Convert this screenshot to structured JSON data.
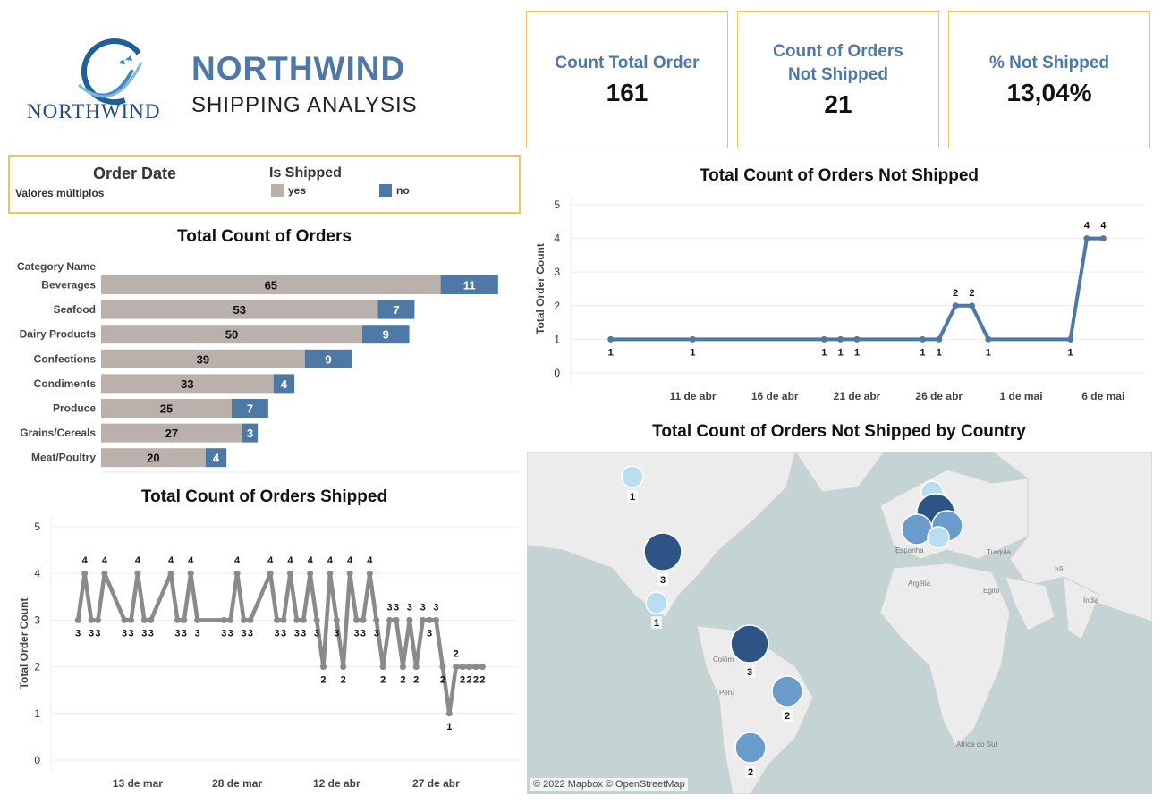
{
  "header": {
    "logo_text": "NORTHWIND",
    "title": "NORTHWIND",
    "subtitle": "SHIPPING ANALYSIS"
  },
  "kpis": [
    {
      "label": "Count Total Order",
      "value": "161"
    },
    {
      "label": "Count of Orders\nNot Shipped",
      "value": "21"
    },
    {
      "label": "% Not Shipped",
      "value": "13,04%"
    }
  ],
  "filters": {
    "order_date_title": "Order Date",
    "order_date_value": "Valores múltiplos",
    "is_shipped_title": "Is Shipped",
    "legend_yes": "yes",
    "legend_no": "no"
  },
  "colors": {
    "yes": "#bab0ac",
    "no": "#4e79a7",
    "line_shipped": "#8a8a8a",
    "line_not_shipped": "#4e79a7",
    "border": "#e8c75c",
    "map_water": "#c4d4d4",
    "map_land": "#ececec"
  },
  "chart_data": [
    {
      "id": "orders-by-category",
      "type": "bar",
      "title": "Total Count of Orders",
      "category_axis_title": "Category Name",
      "categories": [
        "Beverages",
        "Seafood",
        "Dairy Products",
        "Confections",
        "Condiments",
        "Produce",
        "Grains/Cereals",
        "Meat/Poultry"
      ],
      "series": [
        {
          "name": "yes",
          "values": [
            65,
            53,
            50,
            39,
            33,
            25,
            27,
            20
          ]
        },
        {
          "name": "no",
          "values": [
            11,
            7,
            9,
            9,
            4,
            7,
            3,
            4
          ]
        }
      ],
      "stacked": true,
      "orientation": "horizontal"
    },
    {
      "id": "not-shipped-over-time",
      "type": "line",
      "title": "Total Count of Orders Not Shipped",
      "ylabel": "Total Order Count",
      "ylim": [
        0,
        5
      ],
      "yticks": [
        0,
        1,
        2,
        3,
        4,
        5
      ],
      "xlim": [
        "2022-04-04",
        "2022-05-08"
      ],
      "xticks": [
        {
          "value": "2022-04-11",
          "label": "11 de abr"
        },
        {
          "value": "2022-04-16",
          "label": "16 de abr"
        },
        {
          "value": "2022-04-21",
          "label": "21 de abr"
        },
        {
          "value": "2022-04-26",
          "label": "26 de abr"
        },
        {
          "value": "2022-05-01",
          "label": "1 de mai"
        },
        {
          "value": "2022-05-06",
          "label": "6 de mai"
        }
      ],
      "x": [
        "2022-04-06",
        "2022-04-11",
        "2022-04-19",
        "2022-04-20",
        "2022-04-21",
        "2022-04-25",
        "2022-04-26",
        "2022-04-27",
        "2022-04-28",
        "2022-04-29",
        "2022-05-04",
        "2022-05-05",
        "2022-05-06"
      ],
      "y": [
        1,
        1,
        1,
        1,
        1,
        1,
        1,
        2,
        2,
        1,
        1,
        4,
        4
      ]
    },
    {
      "id": "shipped-over-time",
      "type": "line",
      "title": "Total Count of Orders Shipped",
      "ylabel": "Total Order Count",
      "ylim": [
        0,
        5
      ],
      "yticks": [
        0,
        1,
        2,
        3,
        4,
        5
      ],
      "xlim": [
        "2022-03-01",
        "2022-05-08"
      ],
      "xticks": [
        {
          "value": "2022-03-13",
          "label": "13 de mar"
        },
        {
          "value": "2022-03-28",
          "label": "28 de mar"
        },
        {
          "value": "2022-04-12",
          "label": "12 de abr"
        },
        {
          "value": "2022-04-27",
          "label": "27 de abr"
        }
      ],
      "x": [
        "2022-03-04",
        "2022-03-05",
        "2022-03-06",
        "2022-03-07",
        "2022-03-08",
        "2022-03-11",
        "2022-03-12",
        "2022-03-13",
        "2022-03-14",
        "2022-03-15",
        "2022-03-18",
        "2022-03-19",
        "2022-03-20",
        "2022-03-21",
        "2022-03-22",
        "2022-03-26",
        "2022-03-27",
        "2022-03-28",
        "2022-03-29",
        "2022-03-30",
        "2022-04-02",
        "2022-04-03",
        "2022-04-04",
        "2022-04-05",
        "2022-04-06",
        "2022-04-07",
        "2022-04-08",
        "2022-04-09",
        "2022-04-10",
        "2022-04-11",
        "2022-04-12",
        "2022-04-13",
        "2022-04-14",
        "2022-04-15",
        "2022-04-16",
        "2022-04-17",
        "2022-04-18",
        "2022-04-19",
        "2022-04-20",
        "2022-04-21",
        "2022-04-22",
        "2022-04-23",
        "2022-04-24",
        "2022-04-25",
        "2022-04-26",
        "2022-04-27",
        "2022-04-28",
        "2022-04-29",
        "2022-04-30",
        "2022-05-01",
        "2022-05-02",
        "2022-05-03",
        "2022-05-04"
      ],
      "y": [
        3,
        4,
        3,
        3,
        4,
        3,
        3,
        4,
        3,
        3,
        4,
        3,
        3,
        4,
        3,
        3,
        3,
        4,
        3,
        3,
        4,
        3,
        3,
        4,
        3,
        3,
        4,
        3,
        2,
        4,
        3,
        2,
        4,
        3,
        3,
        4,
        3,
        2,
        3,
        3,
        2,
        3,
        2,
        3,
        3,
        3,
        2,
        1,
        2,
        2,
        2,
        2,
        2
      ]
    },
    {
      "id": "not-shipped-by-country",
      "type": "scatter",
      "title": "Total Count of Orders Not Shipped by Country",
      "points": [
        {
          "location": "Canada",
          "value": 1
        },
        {
          "location": "United States",
          "value": 3
        },
        {
          "location": "Mexico",
          "value": 1
        },
        {
          "location": "Venezuela",
          "value": 3
        },
        {
          "location": "Brazil",
          "value": 2
        },
        {
          "location": "Argentina",
          "value": 2
        },
        {
          "location": "Denmark",
          "value": 1
        },
        {
          "location": "Germany",
          "value": 3
        },
        {
          "location": "France",
          "value": 2
        },
        {
          "location": "Austria",
          "value": 2
        },
        {
          "location": "Switzerland",
          "value": 1
        }
      ],
      "map_labels": [
        "Espanha",
        "Turquia",
        "Irã",
        "Argélia",
        "Egito",
        "Índia",
        "Colôm",
        "Peru",
        "África do Sul"
      ],
      "attribution": "© 2022 Mapbox © OpenStreetMap"
    }
  ]
}
